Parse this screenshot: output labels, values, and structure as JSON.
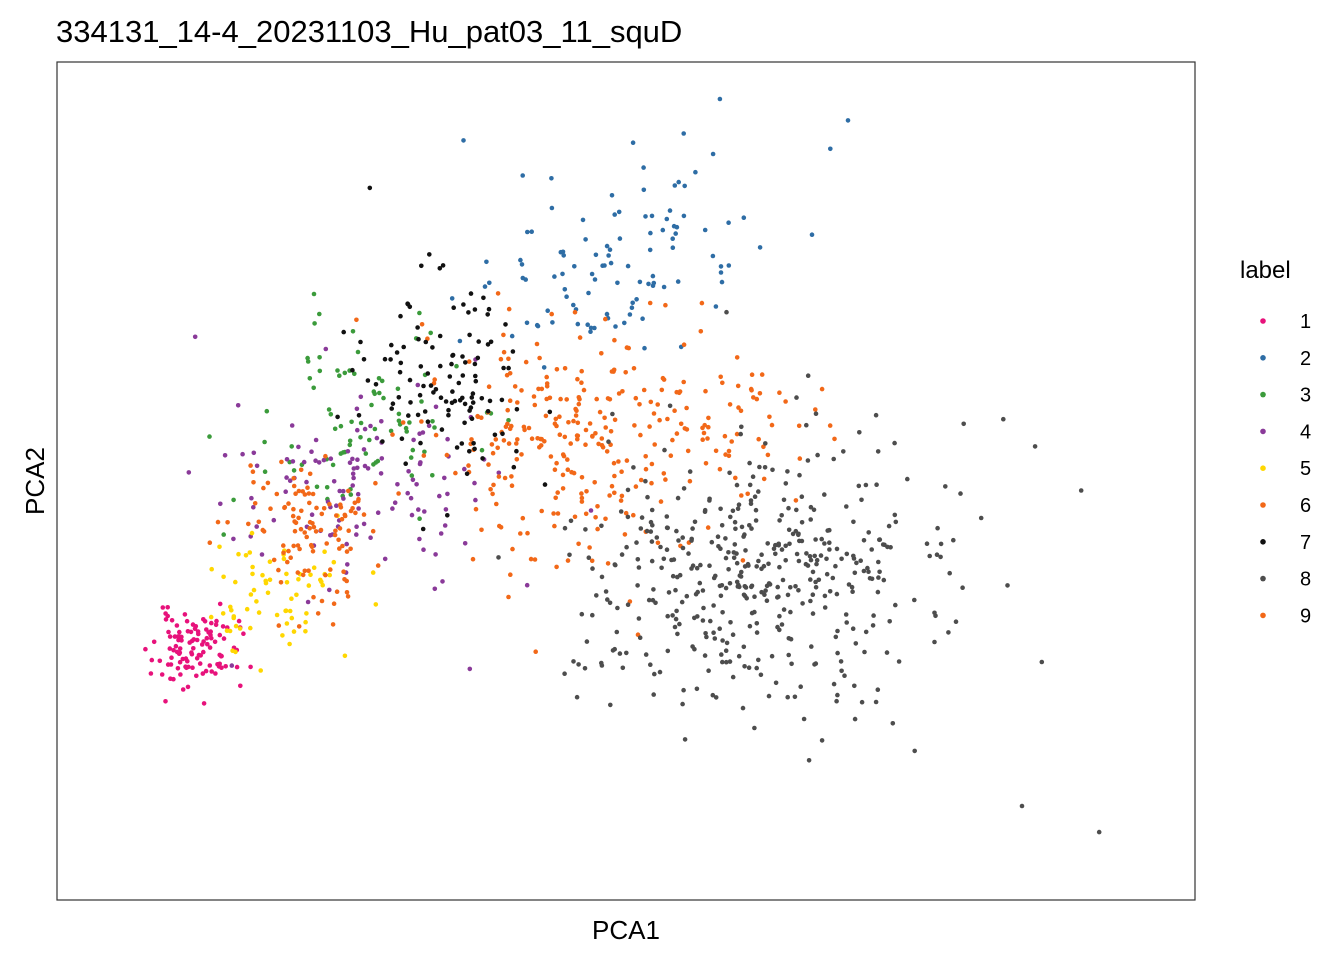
{
  "chart_data": {
    "type": "scatter",
    "title": "334131_14-4_20231103_Hu_pat03_11_squD",
    "xlabel": "PCA1",
    "ylabel": "PCA2",
    "xlim": [
      0,
      100
    ],
    "ylim": [
      0,
      100
    ],
    "x_ticks_shown": false,
    "y_ticks_shown": false,
    "grid": false,
    "legend": {
      "title": "label",
      "position": "right"
    },
    "series": [
      {
        "name": "1",
        "color": "#e7127b",
        "clusters": [
          {
            "cx": 8.8,
            "cy": 28.2,
            "sx": 2.0,
            "sy": 2.4,
            "n": 110,
            "seed": 11
          }
        ]
      },
      {
        "name": "2",
        "color": "#2e6da5",
        "clusters": [
          {
            "cx": 46.0,
            "cy": 75.5,
            "sx": 5.5,
            "sy": 5.5,
            "n": 70,
            "seed": 21
          },
          {
            "cx": 55.5,
            "cy": 86.5,
            "sx": 4.0,
            "sy": 4.5,
            "n": 35,
            "seed": 22
          }
        ]
      },
      {
        "name": "3",
        "color": "#3b9b3b",
        "clusters": [
          {
            "cx": 24.5,
            "cy": 58.5,
            "sx": 5.0,
            "sy": 6.5,
            "n": 85,
            "seed": 31
          }
        ]
      },
      {
        "name": "4",
        "color": "#8a3a99",
        "clusters": [
          {
            "cx": 25.5,
            "cy": 49.5,
            "sx": 6.5,
            "sy": 7.0,
            "n": 125,
            "seed": 41
          }
        ]
      },
      {
        "name": "5",
        "color": "#ffd700",
        "clusters": [
          {
            "cx": 16.0,
            "cy": 35.0,
            "sx": 3.5,
            "sy": 4.0,
            "n": 70,
            "seed": 51
          }
        ]
      },
      {
        "name": "6",
        "color": "#f26818",
        "clusters": [
          {
            "cx": 44.0,
            "cy": 55.0,
            "sx": 7.5,
            "sy": 8.0,
            "n": 260,
            "seed": 61
          },
          {
            "cx": 60.0,
            "cy": 58.0,
            "sx": 5.0,
            "sy": 6.0,
            "n": 50,
            "seed": 62
          }
        ]
      },
      {
        "name": "7",
        "color": "#111111",
        "clusters": [
          {
            "cx": 32.5,
            "cy": 63.5,
            "sx": 4.5,
            "sy": 6.5,
            "n": 115,
            "seed": 71
          }
        ]
      },
      {
        "name": "8",
        "color": "#4d4d4d",
        "clusters": [
          {
            "cx": 63.0,
            "cy": 38.5,
            "sx": 8.5,
            "sy": 8.5,
            "n": 440,
            "seed": 81
          }
        ]
      },
      {
        "name": "9",
        "color": "#f26818",
        "clusters": [
          {
            "cx": 19.5,
            "cy": 43.5,
            "sx": 3.5,
            "sy": 5.0,
            "n": 110,
            "seed": 91
          }
        ]
      }
    ],
    "outliers": [
      {
        "series": "8",
        "x": 86.4,
        "y": 58.2
      },
      {
        "series": "8",
        "x": 82.6,
        "y": 57.6
      },
      {
        "series": "8",
        "x": 81.6,
        "y": 42.4
      },
      {
        "series": "8",
        "x": 82.5,
        "y": 36.2
      },
      {
        "series": "8",
        "x": 86.8,
        "y": 36.5
      },
      {
        "series": "8",
        "x": 90.1,
        "y": 26.5
      },
      {
        "series": "8",
        "x": 75.8,
        "y": 18.5
      },
      {
        "series": "8",
        "x": 77.9,
        "y": 14.9
      },
      {
        "series": "8",
        "x": 88.2,
        "y": 7.7
      },
      {
        "series": "8",
        "x": 95.6,
        "y": 4.3
      },
      {
        "series": "8",
        "x": 45.5,
        "y": 21.9
      },
      {
        "series": "8",
        "x": 72.1,
        "y": 23.4
      },
      {
        "series": "2",
        "x": 59.2,
        "y": 100.0
      },
      {
        "series": "2",
        "x": 71.5,
        "y": 97.2
      },
      {
        "series": "2",
        "x": 69.8,
        "y": 93.5
      },
      {
        "series": "2",
        "x": 34.6,
        "y": 94.6
      },
      {
        "series": "7",
        "x": 25.6,
        "y": 88.4
      },
      {
        "series": "1",
        "x": 4.6,
        "y": 25.0
      },
      {
        "series": "1",
        "x": 9.7,
        "y": 21.1
      },
      {
        "series": "4",
        "x": 35.2,
        "y": 25.6
      }
    ]
  }
}
